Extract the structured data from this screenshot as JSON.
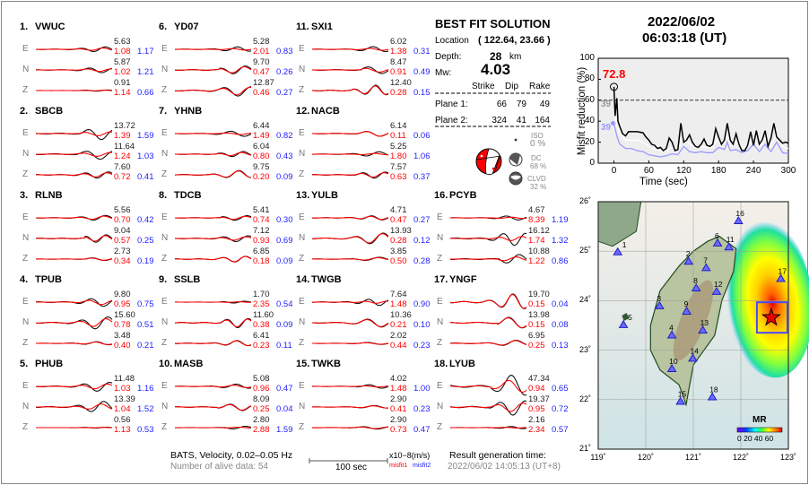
{
  "date": "2022/06/02",
  "time": "06:03:18  (UT)",
  "solution": {
    "title": "BEST FIT SOLUTION",
    "location_label": "Location",
    "location_value": "( 122.64,  23.66 )",
    "depth_label": "Depth:",
    "depth_value": "28",
    "depth_unit": "km",
    "mw_label": "Mw:",
    "mw_value": "4.03",
    "headers": [
      "Strike",
      "Dip",
      "Rake"
    ],
    "planes": [
      {
        "label": "Plane 1:",
        "values": [
          "66",
          "79",
          "49"
        ]
      },
      {
        "label": "Plane 2:",
        "values": [
          "324",
          "41",
          "164"
        ]
      }
    ],
    "iso_label": "ISO",
    "iso_value": "0 %",
    "dc_label": "DC",
    "dc_value": "68 %",
    "clvd_label": "CLVD",
    "clvd_value": "32 %"
  },
  "stations": [
    {
      "num": "1.",
      "name": "VWUC",
      "comps": [
        {
          "c": "E",
          "amp": "5.63",
          "m1": "1.08",
          "m2": "1.17"
        },
        {
          "c": "N",
          "amp": "5.87",
          "m1": "1.02",
          "m2": "1.21"
        },
        {
          "c": "Z",
          "amp": "0.91",
          "m1": "1.14",
          "m2": "0.66"
        }
      ]
    },
    {
      "num": "2.",
      "name": "SBCB",
      "comps": [
        {
          "c": "E",
          "amp": "13.72",
          "m1": "1.39",
          "m2": "1.59"
        },
        {
          "c": "N",
          "amp": "11.64",
          "m1": "1.24",
          "m2": "1.03"
        },
        {
          "c": "Z",
          "amp": "7.60",
          "m1": "0.72",
          "m2": "0.41"
        }
      ]
    },
    {
      "num": "3.",
      "name": "RLNB",
      "comps": [
        {
          "c": "E",
          "amp": "5.56",
          "m1": "0.70",
          "m2": "0.42"
        },
        {
          "c": "N",
          "amp": "9.04",
          "m1": "0.57",
          "m2": "0.25"
        },
        {
          "c": "Z",
          "amp": "2.73",
          "m1": "0.34",
          "m2": "0.19"
        }
      ]
    },
    {
      "num": "4.",
      "name": "TPUB",
      "comps": [
        {
          "c": "E",
          "amp": "9.80",
          "m1": "0.95",
          "m2": "0.75"
        },
        {
          "c": "N",
          "amp": "15.60",
          "m1": "0.78",
          "m2": "0.51"
        },
        {
          "c": "Z",
          "amp": "3.48",
          "m1": "0.40",
          "m2": "0.21"
        }
      ]
    },
    {
      "num": "5.",
      "name": "PHUB",
      "comps": [
        {
          "c": "E",
          "amp": "11.48",
          "m1": "1.03",
          "m2": "1.16"
        },
        {
          "c": "N",
          "amp": "13.39",
          "m1": "1.04",
          "m2": "1.52"
        },
        {
          "c": "Z",
          "amp": "0.56",
          "m1": "1.13",
          "m2": "0.53"
        }
      ]
    },
    {
      "num": "6.",
      "name": "YD07",
      "comps": [
        {
          "c": "E",
          "amp": "5.28",
          "m1": "2.01",
          "m2": "0.83"
        },
        {
          "c": "N",
          "amp": "9.70",
          "m1": "0.47",
          "m2": "0.26"
        },
        {
          "c": "Z",
          "amp": "12.87",
          "m1": "0.46",
          "m2": "0.27"
        }
      ]
    },
    {
      "num": "7.",
      "name": "YHNB",
      "comps": [
        {
          "c": "E",
          "amp": "6.44",
          "m1": "1.49",
          "m2": "0.82"
        },
        {
          "c": "N",
          "amp": "6.04",
          "m1": "0.80",
          "m2": "0.43"
        },
        {
          "c": "Z",
          "amp": "9.75",
          "m1": "0.20",
          "m2": "0.09"
        }
      ]
    },
    {
      "num": "8.",
      "name": "TDCB",
      "comps": [
        {
          "c": "E",
          "amp": "5.41",
          "m1": "0.74",
          "m2": "0.30"
        },
        {
          "c": "N",
          "amp": "7.12",
          "m1": "0.93",
          "m2": "0.69"
        },
        {
          "c": "Z",
          "amp": "6.85",
          "m1": "0.18",
          "m2": "0.09"
        }
      ]
    },
    {
      "num": "9.",
      "name": "SSLB",
      "comps": [
        {
          "c": "E",
          "amp": "1.70",
          "m1": "2.35",
          "m2": "0.54"
        },
        {
          "c": "N",
          "amp": "11.60",
          "m1": "0.38",
          "m2": "0.09"
        },
        {
          "c": "Z",
          "amp": "6.41",
          "m1": "0.23",
          "m2": "0.11"
        }
      ]
    },
    {
      "num": "10.",
      "name": "MASB",
      "comps": [
        {
          "c": "E",
          "amp": "5.08",
          "m1": "0.96",
          "m2": "0.47"
        },
        {
          "c": "N",
          "amp": "8.09",
          "m1": "0.25",
          "m2": "0.04"
        },
        {
          "c": "Z",
          "amp": "2.80",
          "m1": "2.88",
          "m2": "1.59"
        }
      ]
    },
    {
      "num": "11.",
      "name": "SXI1",
      "comps": [
        {
          "c": "E",
          "amp": "6.02",
          "m1": "1.38",
          "m2": "0.31"
        },
        {
          "c": "N",
          "amp": "8.47",
          "m1": "0.91",
          "m2": "0.49"
        },
        {
          "c": "Z",
          "amp": "12.40",
          "m1": "0.28",
          "m2": "0.15"
        }
      ]
    },
    {
      "num": "12.",
      "name": "NACB",
      "comps": [
        {
          "c": "E",
          "amp": "6.14",
          "m1": "0.11",
          "m2": "0.06"
        },
        {
          "c": "N",
          "amp": "5.25",
          "m1": "1.80",
          "m2": "1.06"
        },
        {
          "c": "Z",
          "amp": "7.57",
          "m1": "0.63",
          "m2": "0.37"
        }
      ]
    },
    {
      "num": "13.",
      "name": "YULB",
      "comps": [
        {
          "c": "E",
          "amp": "4.71",
          "m1": "0.47",
          "m2": "0.27"
        },
        {
          "c": "N",
          "amp": "13.93",
          "m1": "0.28",
          "m2": "0.12"
        },
        {
          "c": "Z",
          "amp": "3.85",
          "m1": "0.50",
          "m2": "0.28"
        }
      ]
    },
    {
      "num": "14.",
      "name": "TWGB",
      "comps": [
        {
          "c": "E",
          "amp": "7.64",
          "m1": "1.48",
          "m2": "0.90"
        },
        {
          "c": "N",
          "amp": "10.36",
          "m1": "0.21",
          "m2": "0.10"
        },
        {
          "c": "Z",
          "amp": "2.02",
          "m1": "0.44",
          "m2": "0.23"
        }
      ]
    },
    {
      "num": "15.",
      "name": "TWKB",
      "comps": [
        {
          "c": "E",
          "amp": "4.02",
          "m1": "1.48",
          "m2": "1.00"
        },
        {
          "c": "N",
          "amp": "2.90",
          "m1": "0.41",
          "m2": "0.23"
        },
        {
          "c": "Z",
          "amp": "2.90",
          "m1": "0.73",
          "m2": "0.47"
        }
      ]
    },
    {
      "num": "16.",
      "name": "PCYB",
      "comps": [
        {
          "c": "E",
          "amp": "4.67",
          "m1": "8.39",
          "m2": "1.19"
        },
        {
          "c": "N",
          "amp": "16.12",
          "m1": "1.74",
          "m2": "1.32"
        },
        {
          "c": "Z",
          "amp": "10.88",
          "m1": "1.22",
          "m2": "0.86"
        }
      ]
    },
    {
      "num": "17.",
      "name": "YNGF",
      "comps": [
        {
          "c": "E",
          "amp": "19.70",
          "m1": "0.15",
          "m2": "0.04"
        },
        {
          "c": "N",
          "amp": "13.98",
          "m1": "0.15",
          "m2": "0.08"
        },
        {
          "c": "Z",
          "amp": "6.95",
          "m1": "0.25",
          "m2": "0.13"
        }
      ]
    },
    {
      "num": "18.",
      "name": "LYUB",
      "comps": [
        {
          "c": "E",
          "amp": "47.34",
          "m1": "0.94",
          "m2": "0.65"
        },
        {
          "c": "N",
          "amp": "19.37",
          "m1": "0.95",
          "m2": "0.72"
        },
        {
          "c": "Z",
          "amp": "2.16",
          "m1": "2.34",
          "m2": "0.57"
        }
      ]
    }
  ],
  "footer": {
    "network": "BATS, Velocity, 0.02–0.05 Hz",
    "alive": "Number of alive data: 54",
    "scale_label": "100 sec",
    "unit": "x10−8(m/s)",
    "misfit1": "misfit1",
    "misfit2": "misfit2",
    "gen_label": "Result generation time:",
    "gen_time": "2022/06/02 14:05:13 (UT+8)"
  },
  "chart_data": {
    "type": "line",
    "xlabel": "Time (sec)",
    "ylabel": "Misfit reduction (%)",
    "xlim": [
      -27,
      300
    ],
    "ylim": [
      0,
      100
    ],
    "xticks": [
      0,
      60,
      120,
      180,
      240,
      300
    ],
    "yticks": [
      0,
      20,
      40,
      60,
      80,
      100
    ],
    "threshold": 60,
    "peak_label": "72.8",
    "peak": [
      0,
      72.8
    ],
    "gray_label": "39",
    "blue_label": "39",
    "colors": {
      "main": "#000000",
      "secondary": "#ffffff",
      "tertiary": "#9999ff",
      "peak": "#ff0000"
    },
    "series": [
      {
        "x": [
          0,
          2,
          5,
          7,
          10,
          15,
          20,
          25,
          30,
          40,
          50,
          55,
          60,
          65,
          70,
          75,
          80,
          85,
          90,
          95,
          100,
          105,
          110,
          115,
          120,
          125,
          130,
          135,
          140,
          145,
          150,
          155,
          160,
          165,
          170,
          175,
          180,
          185,
          190,
          195,
          200,
          205,
          210,
          215,
          220,
          225,
          230,
          235,
          240,
          245,
          250,
          255,
          260,
          265,
          270,
          275,
          280,
          285,
          290,
          295,
          300
        ],
        "y": [
          72.8,
          45,
          62,
          40,
          35,
          28,
          26,
          30,
          30,
          30,
          29,
          25,
          22,
          18,
          17,
          14,
          15,
          12,
          14,
          24,
          20,
          12,
          13,
          38,
          20,
          22,
          27,
          20,
          16,
          15,
          18,
          23,
          17,
          16,
          18,
          33,
          25,
          18,
          22,
          38,
          22,
          18,
          28,
          18,
          12,
          12,
          17,
          30,
          17,
          31,
          18,
          22,
          31,
          16,
          24,
          38,
          25,
          22,
          19,
          20,
          19
        ]
      },
      {
        "x": [
          0,
          5,
          10,
          20,
          30,
          40,
          50,
          60,
          70,
          80,
          90,
          100,
          110,
          120,
          130,
          140,
          150,
          160,
          170,
          180,
          190,
          195,
          200,
          210,
          220,
          230,
          240,
          250,
          260,
          270,
          280,
          290,
          300
        ],
        "y": [
          52,
          36,
          28,
          22,
          22,
          22,
          20,
          16,
          13,
          12,
          12,
          15,
          14,
          26,
          18,
          15,
          16,
          15,
          15,
          24,
          19,
          28,
          16,
          20,
          15,
          16,
          24,
          16,
          24,
          16,
          28,
          16,
          14
        ]
      },
      {
        "x": [
          0,
          5,
          10,
          20,
          30,
          40,
          50,
          60,
          70,
          80,
          90,
          100,
          110,
          120,
          130,
          140,
          150,
          160,
          170,
          180,
          190,
          195,
          200,
          210,
          220,
          230,
          240,
          250,
          260,
          270,
          280,
          290,
          300
        ],
        "y": [
          38,
          26,
          18,
          14,
          14,
          12,
          11,
          8,
          7,
          6,
          7,
          9,
          8,
          16,
          11,
          10,
          11,
          10,
          10,
          15,
          13,
          20,
          12,
          13,
          10,
          12,
          18,
          11,
          18,
          11,
          20,
          10,
          9
        ]
      }
    ]
  },
  "map": {
    "lon_ticks": [
      "119˚",
      "120˚",
      "121˚",
      "122˚",
      "123˚"
    ],
    "lat_ticks": [
      "21˚",
      "22˚",
      "23˚",
      "24˚",
      "25˚",
      "26˚"
    ],
    "colorbar_label": "MR",
    "colorbar_ticks": "0 20 40 60",
    "epicenter": [
      122.64,
      23.66
    ],
    "stations": [
      [
        1,
        119.41,
        24.99
      ],
      [
        2,
        120.9,
        24.8
      ],
      [
        3,
        120.29,
        23.9
      ],
      [
        4,
        120.55,
        23.31
      ],
      [
        5,
        119.53,
        23.52
      ],
      [
        6,
        121.51,
        25.17
      ],
      [
        7,
        121.27,
        24.67
      ],
      [
        8,
        121.06,
        24.26
      ],
      [
        9,
        120.86,
        23.79
      ],
      [
        10,
        120.55,
        22.63
      ],
      [
        11,
        121.75,
        25.09
      ],
      [
        12,
        121.49,
        24.19
      ],
      [
        13,
        121.2,
        23.41
      ],
      [
        14,
        120.99,
        22.84
      ],
      [
        15,
        120.73,
        21.97
      ],
      [
        16,
        121.95,
        25.62
      ],
      [
        17,
        122.84,
        24.45
      ],
      [
        18,
        121.4,
        22.06
      ]
    ]
  }
}
